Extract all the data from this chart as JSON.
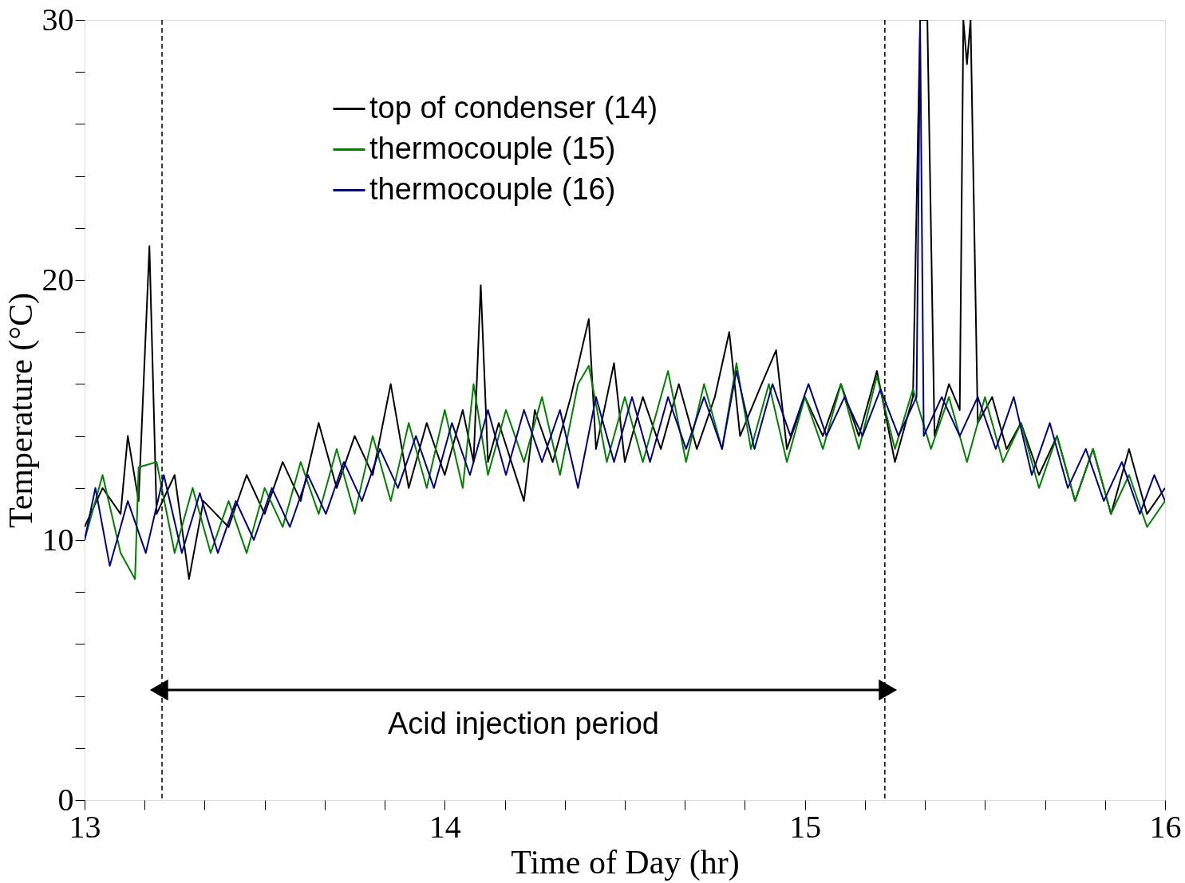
{
  "chart_data": {
    "type": "line",
    "xlabel": "Time of Day (hr)",
    "ylabel": "Temperature (°C)",
    "xlim": [
      13,
      16
    ],
    "ylim": [
      0,
      30
    ],
    "xticks": [
      13,
      {
        "value": 13.1667,
        "label": null
      },
      {
        "value": 13.3333,
        "label": null
      },
      {
        "value": 13.5,
        "label": null
      },
      {
        "value": 13.6667,
        "label": null
      },
      {
        "value": 13.8333,
        "label": null
      },
      14,
      {
        "value": 14.1667,
        "label": null
      },
      {
        "value": 14.3333,
        "label": null
      },
      {
        "value": 14.5,
        "label": null
      },
      {
        "value": 14.6667,
        "label": null
      },
      {
        "value": 14.8333,
        "label": null
      },
      15,
      {
        "value": 15.1667,
        "label": null
      },
      {
        "value": 15.3333,
        "label": null
      },
      {
        "value": 15.5,
        "label": null
      },
      {
        "value": 15.6667,
        "label": null
      },
      {
        "value": 15.8333,
        "label": null
      },
      16
    ],
    "yticks": [
      0,
      {
        "value": 2,
        "label": null
      },
      {
        "value": 4,
        "label": null
      },
      {
        "value": 6,
        "label": null
      },
      {
        "value": 8,
        "label": null
      },
      10,
      {
        "value": 12,
        "label": null
      },
      {
        "value": 14,
        "label": null
      },
      {
        "value": 16,
        "label": null
      },
      {
        "value": 18,
        "label": null
      },
      20,
      {
        "value": 22,
        "label": null
      },
      {
        "value": 24,
        "label": null
      },
      {
        "value": 26,
        "label": null
      },
      {
        "value": 28,
        "label": null
      },
      30
    ],
    "grid": false,
    "legend": "top",
    "line_style": "solid",
    "marker": "none",
    "ref_lines": [
      {
        "axis": "x",
        "value": 13.215,
        "line_style": "dashed",
        "color": "#000000"
      },
      {
        "axis": "x",
        "value": 15.222,
        "line_style": "dashed",
        "color": "#000000"
      }
    ],
    "annotations": [
      "Acid injection period"
    ],
    "series": [
      {
        "name": "top of condenser (14)",
        "color": "#000000",
        "x": [
          13.0,
          13.05,
          13.1,
          13.12,
          13.15,
          13.18,
          13.2,
          13.25,
          13.29,
          13.33,
          13.4,
          13.45,
          13.5,
          13.55,
          13.6,
          13.65,
          13.7,
          13.75,
          13.8,
          13.85,
          13.9,
          13.95,
          14.0,
          14.05,
          14.08,
          14.1,
          14.12,
          14.15,
          14.22,
          14.25,
          14.3,
          14.35,
          14.4,
          14.42,
          14.47,
          14.5,
          14.55,
          14.6,
          14.65,
          14.7,
          14.75,
          14.79,
          14.82,
          14.88,
          14.92,
          14.95,
          15.0,
          15.05,
          15.1,
          15.15,
          15.2,
          15.25,
          15.3,
          15.32,
          15.34,
          15.36,
          15.4,
          15.43,
          15.44,
          15.45,
          15.46,
          15.48,
          15.52,
          15.56,
          15.6,
          15.65,
          15.7,
          15.75,
          15.8,
          15.85,
          15.9,
          15.95,
          16.0
        ],
        "values": [
          10.5,
          12.0,
          11.0,
          14.0,
          11.5,
          21.3,
          11.0,
          12.5,
          8.5,
          11.5,
          10.5,
          12.5,
          11.0,
          13.0,
          11.5,
          14.5,
          12.0,
          14.0,
          12.5,
          16.0,
          12.0,
          14.5,
          12.5,
          15.0,
          13.0,
          19.8,
          13.0,
          14.5,
          11.5,
          15.0,
          13.0,
          15.5,
          18.5,
          13.5,
          16.8,
          13.0,
          15.5,
          13.5,
          16.0,
          13.5,
          15.5,
          18.0,
          14.0,
          16.0,
          17.3,
          13.5,
          15.5,
          14.0,
          16.0,
          14.0,
          16.5,
          13.0,
          15.5,
          30,
          30,
          14.0,
          16.0,
          15.0,
          30,
          28.3,
          30,
          14.5,
          15.5,
          13.5,
          14.5,
          12.5,
          14.0,
          11.5,
          13.5,
          11.0,
          13.5,
          11.0,
          12.0
        ]
      },
      {
        "name": "thermocouple (15)",
        "color": "#008000",
        "x": [
          13.0,
          13.05,
          13.1,
          13.14,
          13.15,
          13.2,
          13.25,
          13.3,
          13.35,
          13.4,
          13.45,
          13.5,
          13.55,
          13.6,
          13.65,
          13.7,
          13.75,
          13.8,
          13.85,
          13.9,
          13.95,
          14.0,
          14.05,
          14.08,
          14.12,
          14.17,
          14.22,
          14.27,
          14.32,
          14.37,
          14.4,
          14.45,
          14.5,
          14.55,
          14.62,
          14.67,
          14.72,
          14.77,
          14.81,
          14.85,
          14.9,
          14.95,
          15.0,
          15.05,
          15.1,
          15.15,
          15.2,
          15.25,
          15.3,
          15.35,
          15.4,
          15.45,
          15.5,
          15.55,
          15.6,
          15.65,
          15.7,
          15.75,
          15.8,
          15.85,
          15.9,
          15.95,
          16.0
        ],
        "values": [
          10.0,
          12.5,
          9.5,
          8.5,
          12.8,
          13.0,
          9.5,
          12.0,
          9.5,
          11.5,
          9.5,
          12.0,
          10.5,
          13.0,
          11.0,
          13.5,
          11.0,
          14.0,
          11.5,
          14.5,
          12.0,
          15.0,
          12.0,
          16.0,
          12.5,
          15.0,
          13.0,
          15.5,
          12.5,
          16.0,
          16.7,
          13.0,
          15.5,
          13.0,
          16.5,
          13.0,
          16.0,
          13.5,
          16.8,
          13.5,
          16.0,
          13.0,
          15.5,
          13.5,
          16.0,
          13.5,
          16.3,
          13.5,
          15.8,
          13.5,
          15.5,
          13.0,
          15.5,
          13.0,
          14.5,
          12.0,
          14.0,
          11.5,
          13.5,
          11.0,
          12.5,
          10.5,
          11.5
        ]
      },
      {
        "name": "thermocouple (16)",
        "color": "#000080",
        "x": [
          13.0,
          13.03,
          13.07,
          13.12,
          13.17,
          13.22,
          13.27,
          13.32,
          13.37,
          13.42,
          13.47,
          13.52,
          13.57,
          13.62,
          13.67,
          13.72,
          13.77,
          13.82,
          13.87,
          13.92,
          13.97,
          14.02,
          14.07,
          14.12,
          14.17,
          14.22,
          14.27,
          14.32,
          14.37,
          14.42,
          14.47,
          14.52,
          14.57,
          14.62,
          14.67,
          14.72,
          14.77,
          14.81,
          14.86,
          14.91,
          14.96,
          15.01,
          15.06,
          15.11,
          15.16,
          15.21,
          15.26,
          15.31,
          15.32,
          15.33,
          15.38,
          15.43,
          15.48,
          15.53,
          15.58,
          15.63,
          15.68,
          15.73,
          15.78,
          15.83,
          15.88,
          15.93,
          15.97,
          16.0
        ],
        "values": [
          10.0,
          12.0,
          9.0,
          11.5,
          9.5,
          12.5,
          9.5,
          11.8,
          9.5,
          11.5,
          10.0,
          12.0,
          10.5,
          12.5,
          11.0,
          13.0,
          11.5,
          13.5,
          12.0,
          14.0,
          12.0,
          14.5,
          12.5,
          15.0,
          12.5,
          15.0,
          13.0,
          15.0,
          12.0,
          15.5,
          13.0,
          15.5,
          13.0,
          15.5,
          13.5,
          15.5,
          13.5,
          16.5,
          13.5,
          16.0,
          14.0,
          16.0,
          14.0,
          15.5,
          14.0,
          15.8,
          14.0,
          15.5,
          29.8,
          14.0,
          15.5,
          14.0,
          15.5,
          13.5,
          15.5,
          12.5,
          14.5,
          12.0,
          13.5,
          11.5,
          13.0,
          11.0,
          12.5,
          11.5
        ]
      }
    ]
  }
}
